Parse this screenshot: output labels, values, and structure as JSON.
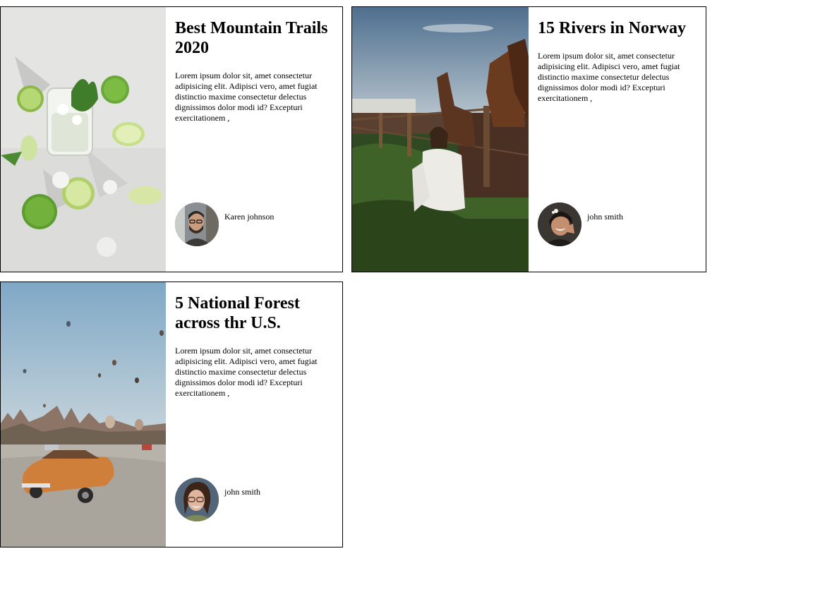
{
  "cards": [
    {
      "title": "Best Mountain Trails 2020",
      "text": "Lorem ipsum dolor sit, amet consectetur adipisicing elit. Adipisci vero, amet fugiat distinctio maxime consectetur delectus dignissimos dolor modi id? Excepturi exercitationem ,",
      "author": "Karen johnson",
      "image_icon": "limes-drink-photo",
      "avatar_icon": "bearded-man-avatar"
    },
    {
      "title": "15 Rivers in Norway",
      "text": "Lorem ipsum dolor sit, amet consectetur adipisicing elit. Adipisci vero, amet fugiat distinctio maxime consectetur delectus dignissimos dolor modi id? Excepturi exercitationem ,",
      "author": "john smith",
      "image_icon": "woman-with-horses-photo",
      "avatar_icon": "smiling-woman-avatar"
    },
    {
      "title": "5 National Forest across thr U.S.",
      "text": "Lorem ipsum dolor sit, amet consectetur adipisicing elit. Adipisci vero, amet fugiat distinctio maxime consectetur delectus dignissimos dolor modi id? Excepturi exercitationem ,",
      "author": "john smith",
      "image_icon": "balloons-and-car-photo",
      "avatar_icon": "woman-with-glasses-avatar"
    }
  ],
  "colors": {
    "border": "#000000",
    "background": "#ffffff",
    "text": "#000000"
  }
}
